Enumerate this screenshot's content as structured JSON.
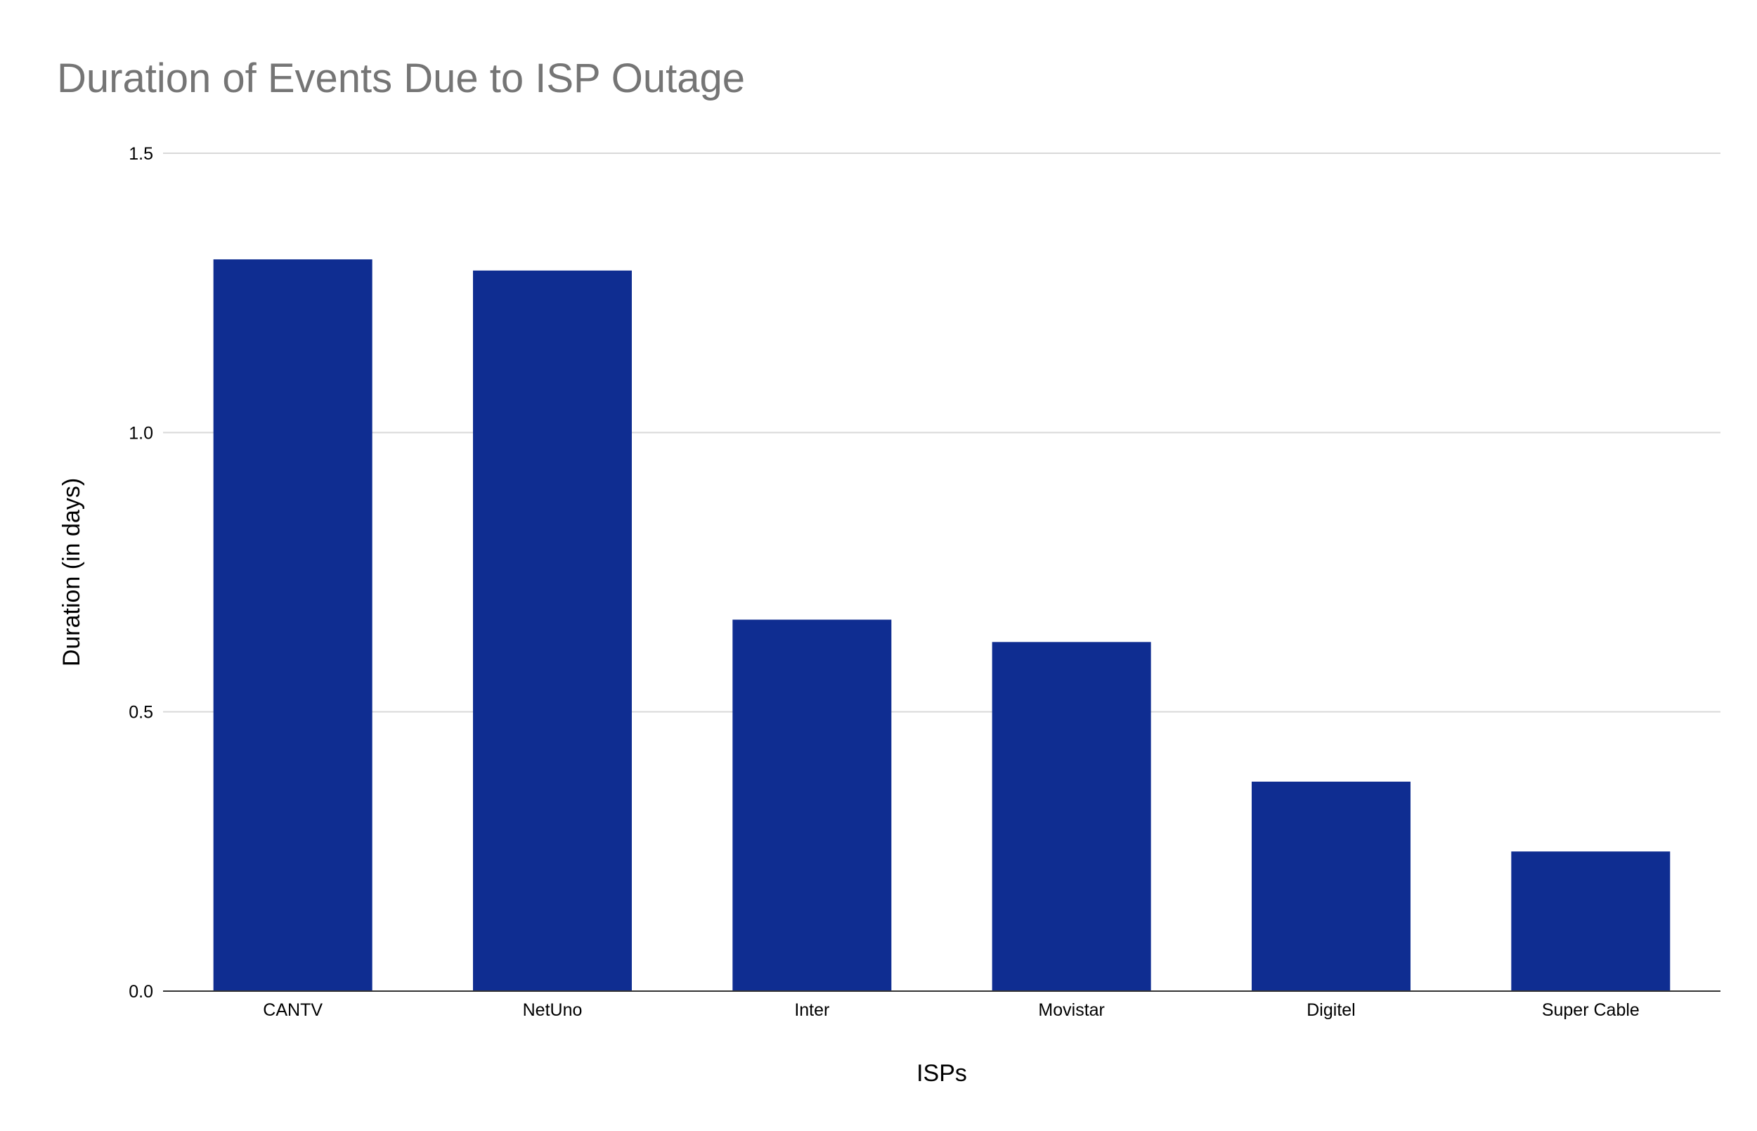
{
  "chart_data": {
    "type": "bar",
    "title": "Duration of Events Due to ISP Outage",
    "xlabel": "ISPs",
    "ylabel": "Duration (in days)",
    "categories": [
      "CANTV",
      "NetUno",
      "Inter",
      "Movistar",
      "Digitel",
      "Super Cable"
    ],
    "values": [
      1.31,
      1.29,
      0.665,
      0.625,
      0.375,
      0.25
    ],
    "ylim": [
      0,
      1.5
    ],
    "yticks": [
      "0.0",
      "0.5",
      "1.0",
      "1.5"
    ],
    "grid": true,
    "legend": "none",
    "colors": {
      "bar": "#0f2d91",
      "gridline": "#d9d9d9",
      "baseline": "#333333",
      "title": "#757575",
      "text": "#000000"
    }
  }
}
